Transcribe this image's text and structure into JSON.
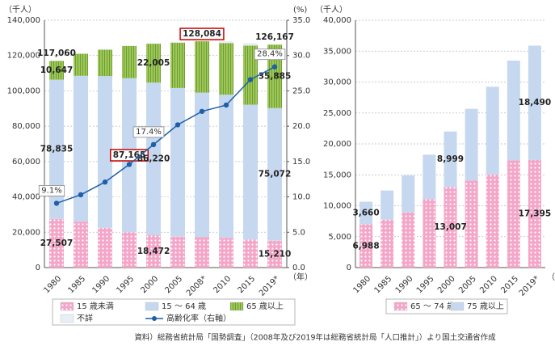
{
  "chart_data": [
    {
      "type": "stacked-bar-line",
      "y_unit": "（千人）",
      "y2_unit": "(%)",
      "x_unit": "（年）",
      "categories": [
        "1980",
        "1985",
        "1990",
        "1995",
        "2000",
        "2005",
        "2008*",
        "2010",
        "2015",
        "2019*"
      ],
      "ylim": [
        0,
        140000
      ],
      "yticks": [
        0,
        {
          "value": 20000,
          "label": "20,000"
        },
        {
          "value": 40000,
          "label": "40,000"
        },
        {
          "value": 60000,
          "label": "60,000"
        },
        {
          "value": 80000,
          "label": "80,000"
        },
        {
          "value": 100000,
          "label": "100,000"
        },
        {
          "value": 120000,
          "label": "120,000"
        },
        {
          "value": 140000,
          "label": "140,000"
        }
      ],
      "y2lim": [
        0,
        35
      ],
      "y2ticks": [
        {
          "value": 0,
          "label": "0.0"
        },
        {
          "value": 5,
          "label": "5.0"
        },
        {
          "value": 10,
          "label": "10.0"
        },
        {
          "value": 15,
          "label": "15.0"
        },
        {
          "value": 20,
          "label": "20.0"
        },
        {
          "value": 25,
          "label": "25.0"
        },
        {
          "value": 30,
          "label": "30.0"
        },
        {
          "value": 35,
          "label": "35.0"
        }
      ],
      "series": [
        {
          "name": "15 歳未満",
          "color": "#f4a6c8",
          "pattern": "dots",
          "values": [
            27507,
            26033,
            22486,
            20014,
            18472,
            17521,
            17176,
            16803,
            15887,
            15210
          ],
          "value_labels": [
            "27,507",
            null,
            null,
            null,
            "18,472",
            null,
            null,
            null,
            null,
            "15,210"
          ]
        },
        {
          "name": "15 ～ 64 歳",
          "color": "#c6d8ef",
          "values": [
            78835,
            82506,
            85904,
            87165,
            86220,
            84092,
            81849,
            81032,
            76289,
            75072
          ],
          "value_labels": [
            "78,835",
            null,
            null,
            "87,165",
            "86,220",
            null,
            null,
            null,
            null,
            "75,072"
          ],
          "highlighted": [
            3
          ]
        },
        {
          "name": "65 歳以上",
          "color": "#9dc75b",
          "pattern": "stripes",
          "values": [
            10647,
            12468,
            14895,
            18261,
            22005,
            25672,
            29059,
            29246,
            33465,
            35885
          ],
          "value_labels": [
            "10,647",
            null,
            null,
            null,
            "22,005",
            null,
            null,
            null,
            null,
            "35,885"
          ]
        },
        {
          "name": "不詳",
          "color": "#e8eef6",
          "values": [
            71,
            42,
            326,
            130,
            229,
            483,
            0,
            976,
            1455,
            0
          ]
        },
        {
          "name": "高齢化率（右軸）",
          "color": "#1f5fa8",
          "axis": "y2",
          "line": true,
          "values": [
            9.1,
            10.3,
            12.1,
            14.6,
            17.4,
            20.2,
            22.1,
            23.0,
            26.6,
            28.4
          ],
          "value_labels": [
            "9.1%",
            null,
            null,
            null,
            "17.4%",
            null,
            null,
            null,
            null,
            "28.4%"
          ]
        }
      ],
      "totals": [
        {
          "category": "1980",
          "value": 117060,
          "label": "117,060"
        },
        {
          "category": "2008*",
          "value": 128084,
          "label": "128,084",
          "highlighted": true
        },
        {
          "category": "2019*",
          "value": 126167,
          "label": "126,167"
        }
      ]
    },
    {
      "type": "stacked-bar",
      "y_unit": "（千人）",
      "x_unit": "（年）",
      "categories": [
        "1980",
        "1985",
        "1990",
        "1995",
        "2000",
        "2005",
        "2010",
        "2015",
        "2019*"
      ],
      "ylim": [
        0,
        40000
      ],
      "yticks": [
        0,
        {
          "value": 5000,
          "label": "5,000"
        },
        {
          "value": 10000,
          "label": "10,000"
        },
        {
          "value": 15000,
          "label": "15,000"
        },
        {
          "value": 20000,
          "label": "20,000"
        },
        {
          "value": 25000,
          "label": "25,000"
        },
        {
          "value": 30000,
          "label": "30,000"
        },
        {
          "value": 35000,
          "label": "35,000"
        },
        {
          "value": 40000,
          "label": "40,000"
        }
      ],
      "series": [
        {
          "name": "65 ～ 74 歳",
          "color": "#f4a6c8",
          "pattern": "dots",
          "values": [
            6988,
            7755,
            8922,
            11091,
            13007,
            14070,
            15052,
            17340,
            17395
          ],
          "value_labels": [
            "6,988",
            null,
            null,
            null,
            "13,007",
            null,
            null,
            null,
            "17,395"
          ]
        },
        {
          "name": "75 歳以上",
          "color": "#c6d8ef",
          "values": [
            3660,
            4713,
            5973,
            7170,
            8999,
            11602,
            14194,
            16125,
            18490
          ],
          "value_labels": [
            "3,660",
            null,
            null,
            null,
            "8,999",
            null,
            null,
            null,
            "18,490"
          ]
        }
      ]
    }
  ],
  "source": "資料）総務省統計局「国勢調査」（2008年及び2019年は総務省統計局「人口推計」）より国土交通省作成"
}
